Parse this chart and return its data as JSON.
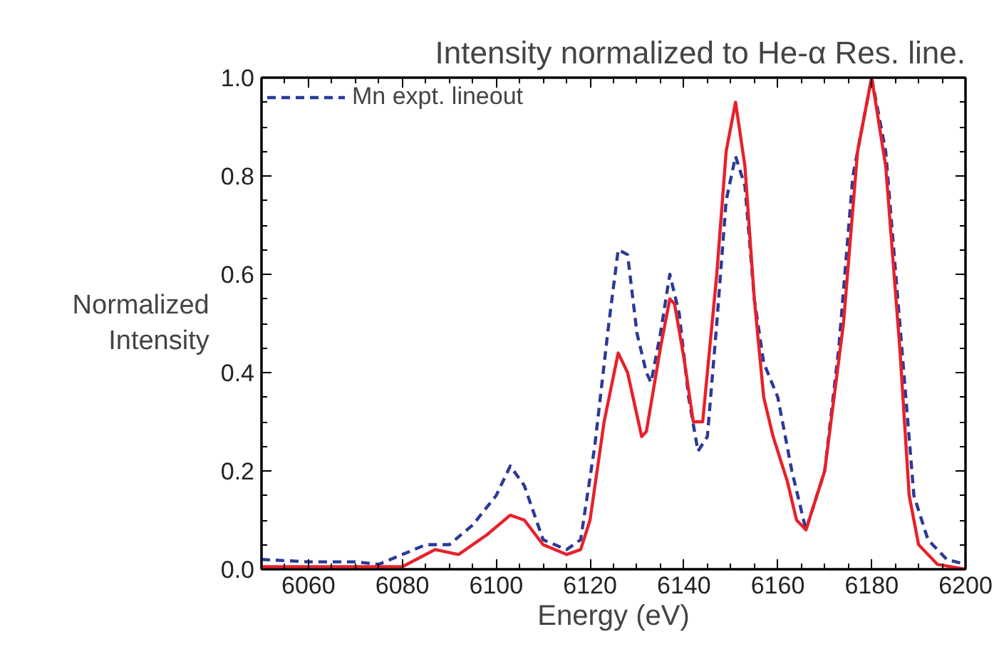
{
  "chart_data": {
    "type": "line",
    "title": "Intensity normalized to He-α Res. line.",
    "xlabel": "Energy (eV)",
    "ylabel": "Normalized\nIntensity",
    "xlim": [
      6050,
      6200
    ],
    "xticks": [
      6060,
      6080,
      6100,
      6120,
      6140,
      6160,
      6180,
      6200
    ],
    "ylim": [
      0,
      1.0
    ],
    "yticks": [
      {
        "value": 0,
        "label": "0.0"
      },
      {
        "value": 0.2,
        "label": "0.2"
      },
      {
        "value": 0.4,
        "label": "0.4"
      },
      {
        "value": 0.6,
        "label": "0.6"
      },
      {
        "value": 0.8,
        "label": "0.8"
      },
      {
        "value": 1.0,
        "label": "1.0"
      }
    ],
    "grid": false,
    "legend": "top left",
    "marker": "none",
    "series": [
      {
        "name": "Mn expt. lineout",
        "color": "#2b3a96",
        "line_style": "dashed",
        "x": [
          6050,
          6060,
          6070,
          6075,
          6080,
          6085,
          6090,
          6095,
          6100,
          6103,
          6106,
          6110,
          6115,
          6118,
          6121,
          6124,
          6126,
          6128,
          6130,
          6132,
          6133,
          6135,
          6137,
          6139,
          6141,
          6143,
          6145,
          6147,
          6149,
          6151,
          6153,
          6155,
          6157,
          6160,
          6163,
          6166,
          6170,
          6173,
          6176,
          6180,
          6183,
          6186,
          6189,
          6192,
          6196,
          6200
        ],
        "values": [
          0.02,
          0.015,
          0.015,
          0.01,
          0.03,
          0.05,
          0.05,
          0.09,
          0.15,
          0.21,
          0.17,
          0.06,
          0.04,
          0.06,
          0.25,
          0.5,
          0.65,
          0.64,
          0.48,
          0.4,
          0.38,
          0.48,
          0.6,
          0.52,
          0.35,
          0.24,
          0.27,
          0.5,
          0.75,
          0.84,
          0.78,
          0.55,
          0.42,
          0.35,
          0.2,
          0.08,
          0.2,
          0.45,
          0.8,
          1.0,
          0.85,
          0.5,
          0.15,
          0.06,
          0.02,
          0.01
        ]
      },
      {
        "color": "#e8202a",
        "line_style": "solid",
        "x": [
          6050,
          6080,
          6085,
          6087,
          6092,
          6098,
          6103,
          6106,
          6110,
          6115,
          6118,
          6120,
          6123,
          6126,
          6128,
          6131,
          6132,
          6135,
          6137,
          6138,
          6140,
          6142,
          6144,
          6147,
          6149,
          6151,
          6153,
          6155,
          6157,
          6159,
          6162,
          6164,
          6166,
          6170,
          6174,
          6177,
          6180,
          6183,
          6186,
          6188,
          6190,
          6194,
          6200
        ],
        "values": [
          0.005,
          0.005,
          0.03,
          0.04,
          0.03,
          0.07,
          0.11,
          0.1,
          0.05,
          0.03,
          0.04,
          0.1,
          0.3,
          0.44,
          0.4,
          0.27,
          0.28,
          0.45,
          0.55,
          0.54,
          0.43,
          0.3,
          0.3,
          0.6,
          0.85,
          0.95,
          0.82,
          0.55,
          0.35,
          0.27,
          0.18,
          0.1,
          0.08,
          0.2,
          0.5,
          0.85,
          1.0,
          0.82,
          0.45,
          0.15,
          0.05,
          0.01,
          0.0
        ]
      }
    ]
  }
}
